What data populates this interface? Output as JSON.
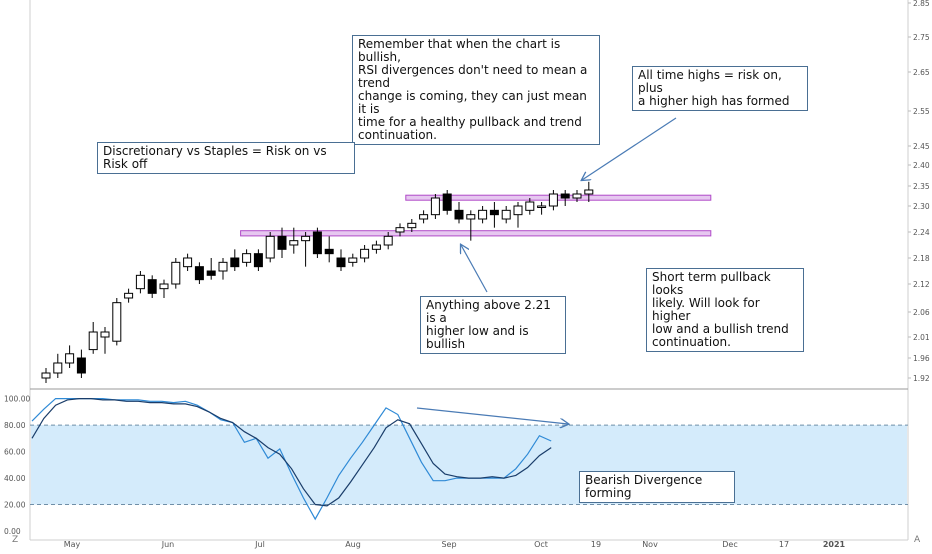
{
  "chart_data": [
    {
      "type": "candlestick",
      "title": "",
      "x_tick_labels": [
        "May",
        "Jun",
        "Jul",
        "Aug",
        "Sep",
        "Oct",
        "19",
        "Nov",
        "Dec",
        "17",
        "2021"
      ],
      "price_axis_ticks": [
        "2.85",
        "2.75",
        "2.65",
        "2.55",
        "2.45",
        "2.40",
        "2.35",
        "2.30",
        "2.24",
        "2.18",
        "2.12",
        "2.06",
        "2.01",
        "1.96",
        "1.92"
      ],
      "ylim": [
        1.9,
        2.86
      ],
      "candles": [
        {
          "o": 1.92,
          "h": 1.94,
          "l": 1.91,
          "c": 1.93
        },
        {
          "o": 1.93,
          "h": 1.97,
          "l": 1.92,
          "c": 1.95
        },
        {
          "o": 1.95,
          "h": 1.99,
          "l": 1.94,
          "c": 1.97
        },
        {
          "o": 1.96,
          "h": 1.98,
          "l": 1.92,
          "c": 1.93
        },
        {
          "o": 1.98,
          "h": 2.04,
          "l": 1.97,
          "c": 2.02
        },
        {
          "o": 2.01,
          "h": 2.03,
          "l": 1.97,
          "c": 2.02
        },
        {
          "o": 2.0,
          "h": 2.09,
          "l": 1.99,
          "c": 2.08
        },
        {
          "o": 2.09,
          "h": 2.11,
          "l": 2.08,
          "c": 2.1
        },
        {
          "o": 2.11,
          "h": 2.15,
          "l": 2.1,
          "c": 2.14
        },
        {
          "o": 2.13,
          "h": 2.14,
          "l": 2.09,
          "c": 2.1
        },
        {
          "o": 2.11,
          "h": 2.13,
          "l": 2.09,
          "c": 2.12
        },
        {
          "o": 2.12,
          "h": 2.18,
          "l": 2.11,
          "c": 2.17
        },
        {
          "o": 2.16,
          "h": 2.19,
          "l": 2.15,
          "c": 2.18
        },
        {
          "o": 2.16,
          "h": 2.17,
          "l": 2.12,
          "c": 2.13
        },
        {
          "o": 2.15,
          "h": 2.18,
          "l": 2.13,
          "c": 2.14
        },
        {
          "o": 2.15,
          "h": 2.18,
          "l": 2.13,
          "c": 2.17
        },
        {
          "o": 2.18,
          "h": 2.2,
          "l": 2.15,
          "c": 2.16
        },
        {
          "o": 2.17,
          "h": 2.2,
          "l": 2.16,
          "c": 2.19
        },
        {
          "o": 2.19,
          "h": 2.2,
          "l": 2.15,
          "c": 2.16
        },
        {
          "o": 2.18,
          "h": 2.24,
          "l": 2.17,
          "c": 2.23
        },
        {
          "o": 2.23,
          "h": 2.25,
          "l": 2.18,
          "c": 2.2
        },
        {
          "o": 2.21,
          "h": 2.25,
          "l": 2.19,
          "c": 2.22
        },
        {
          "o": 2.22,
          "h": 2.24,
          "l": 2.16,
          "c": 2.23
        },
        {
          "o": 2.24,
          "h": 2.25,
          "l": 2.18,
          "c": 2.19
        },
        {
          "o": 2.2,
          "h": 2.23,
          "l": 2.17,
          "c": 2.19
        },
        {
          "o": 2.18,
          "h": 2.2,
          "l": 2.15,
          "c": 2.16
        },
        {
          "o": 2.17,
          "h": 2.19,
          "l": 2.16,
          "c": 2.18
        },
        {
          "o": 2.18,
          "h": 2.21,
          "l": 2.17,
          "c": 2.2
        },
        {
          "o": 2.2,
          "h": 2.22,
          "l": 2.19,
          "c": 2.21
        },
        {
          "o": 2.21,
          "h": 2.24,
          "l": 2.2,
          "c": 2.23
        },
        {
          "o": 2.24,
          "h": 2.26,
          "l": 2.23,
          "c": 2.25
        },
        {
          "o": 2.25,
          "h": 2.27,
          "l": 2.24,
          "c": 2.26
        },
        {
          "o": 2.27,
          "h": 2.29,
          "l": 2.26,
          "c": 2.28
        },
        {
          "o": 2.28,
          "h": 2.33,
          "l": 2.27,
          "c": 2.32
        },
        {
          "o": 2.33,
          "h": 2.34,
          "l": 2.28,
          "c": 2.29
        },
        {
          "o": 2.29,
          "h": 2.31,
          "l": 2.26,
          "c": 2.27
        },
        {
          "o": 2.27,
          "h": 2.29,
          "l": 2.22,
          "c": 2.28
        },
        {
          "o": 2.27,
          "h": 2.3,
          "l": 2.26,
          "c": 2.29
        },
        {
          "o": 2.29,
          "h": 2.31,
          "l": 2.25,
          "c": 2.28
        },
        {
          "o": 2.27,
          "h": 2.3,
          "l": 2.26,
          "c": 2.29
        },
        {
          "o": 2.28,
          "h": 2.31,
          "l": 2.25,
          "c": 2.3
        },
        {
          "o": 2.29,
          "h": 2.32,
          "l": 2.28,
          "c": 2.31
        },
        {
          "o": 2.3,
          "h": 2.31,
          "l": 2.28,
          "c": 2.3
        },
        {
          "o": 2.3,
          "h": 2.34,
          "l": 2.29,
          "c": 2.33
        },
        {
          "o": 2.33,
          "h": 2.34,
          "l": 2.3,
          "c": 2.32
        },
        {
          "o": 2.32,
          "h": 2.34,
          "l": 2.31,
          "c": 2.33
        },
        {
          "o": 2.33,
          "h": 2.36,
          "l": 2.31,
          "c": 2.34
        }
      ],
      "zones": [
        {
          "label": "resistance-zone",
          "from_candle": 31,
          "to_candle": 56,
          "low": 2.315,
          "high": 2.327,
          "color": "#e6c7f0",
          "border": "#b04ac8"
        },
        {
          "label": "support-zone",
          "from_candle": 17,
          "to_candle": 56,
          "low": 2.231,
          "high": 2.243,
          "color": "#e6c7f0",
          "border": "#b04ac8"
        }
      ]
    },
    {
      "type": "line",
      "y_tick_labels": [
        "100.00",
        "80.00",
        "60.00",
        "40.00",
        "20.00",
        "0.00"
      ],
      "ylim": [
        -3,
        105
      ],
      "band": [
        20,
        80
      ],
      "band_color": "#d4ebfb",
      "x_candle_index": [
        0,
        1,
        2,
        3,
        4,
        5,
        6,
        7,
        8,
        9,
        10,
        11,
        12,
        13,
        14,
        15,
        16,
        17,
        18,
        19,
        20,
        21,
        22,
        23,
        24,
        25,
        26,
        27,
        28,
        29,
        30,
        31,
        32,
        33,
        34,
        35,
        36,
        37,
        38,
        39,
        40,
        41,
        42,
        43,
        44,
        45,
        46
      ],
      "series": [
        {
          "color": "#2f8ad6",
          "values": [
            83,
            92,
            100,
            100,
            100,
            100,
            100,
            99,
            99,
            99,
            98,
            98,
            97,
            98,
            95,
            90,
            84,
            82,
            67,
            70,
            55,
            62,
            43,
            25,
            9,
            25,
            42,
            55,
            67,
            80,
            93,
            88,
            70,
            52,
            38,
            38,
            40,
            40,
            40,
            40,
            40,
            47,
            58,
            72,
            68,
            null,
            null
          ]
        },
        {
          "color": "#1a3d6a",
          "values": [
            70,
            85,
            95,
            99,
            100,
            100,
            99,
            99,
            98,
            98,
            97,
            97,
            96,
            96,
            94,
            90,
            85,
            82,
            75,
            70,
            63,
            58,
            47,
            32,
            20,
            19,
            25,
            37,
            50,
            63,
            78,
            84,
            81,
            66,
            51,
            43,
            41,
            40,
            40,
            41,
            40,
            42,
            48,
            57,
            63,
            null,
            null
          ]
        }
      ]
    }
  ],
  "notes": {
    "rsi_note": "Remember that when the chart is bullish,\nRSI divergences don't need to mean a trend\nchange is coming, they can just mean it is\ntime for a healthy pullback and trend\ncontinuation.",
    "ath_note": "All time highs = risk on, plus\na higher high has formed",
    "ratio_note": "Discretionary vs Staples = Risk on vs Risk off",
    "higher_low_note": "Anything above 2.21 is a\nhigher low and is bullish",
    "pullback_note": "Short term pullback looks\nlikely. Will look for higher\nlow and a bullish trend\ncontinuation.",
    "divergence_note": "Bearish Divergence forming"
  },
  "corner_labels": {
    "left": "Z",
    "right": "A"
  },
  "colors": {
    "note_border": "#4a6f93",
    "arrow": "#4a7bb5",
    "candle": "#000000",
    "axis_text": "#555555"
  }
}
